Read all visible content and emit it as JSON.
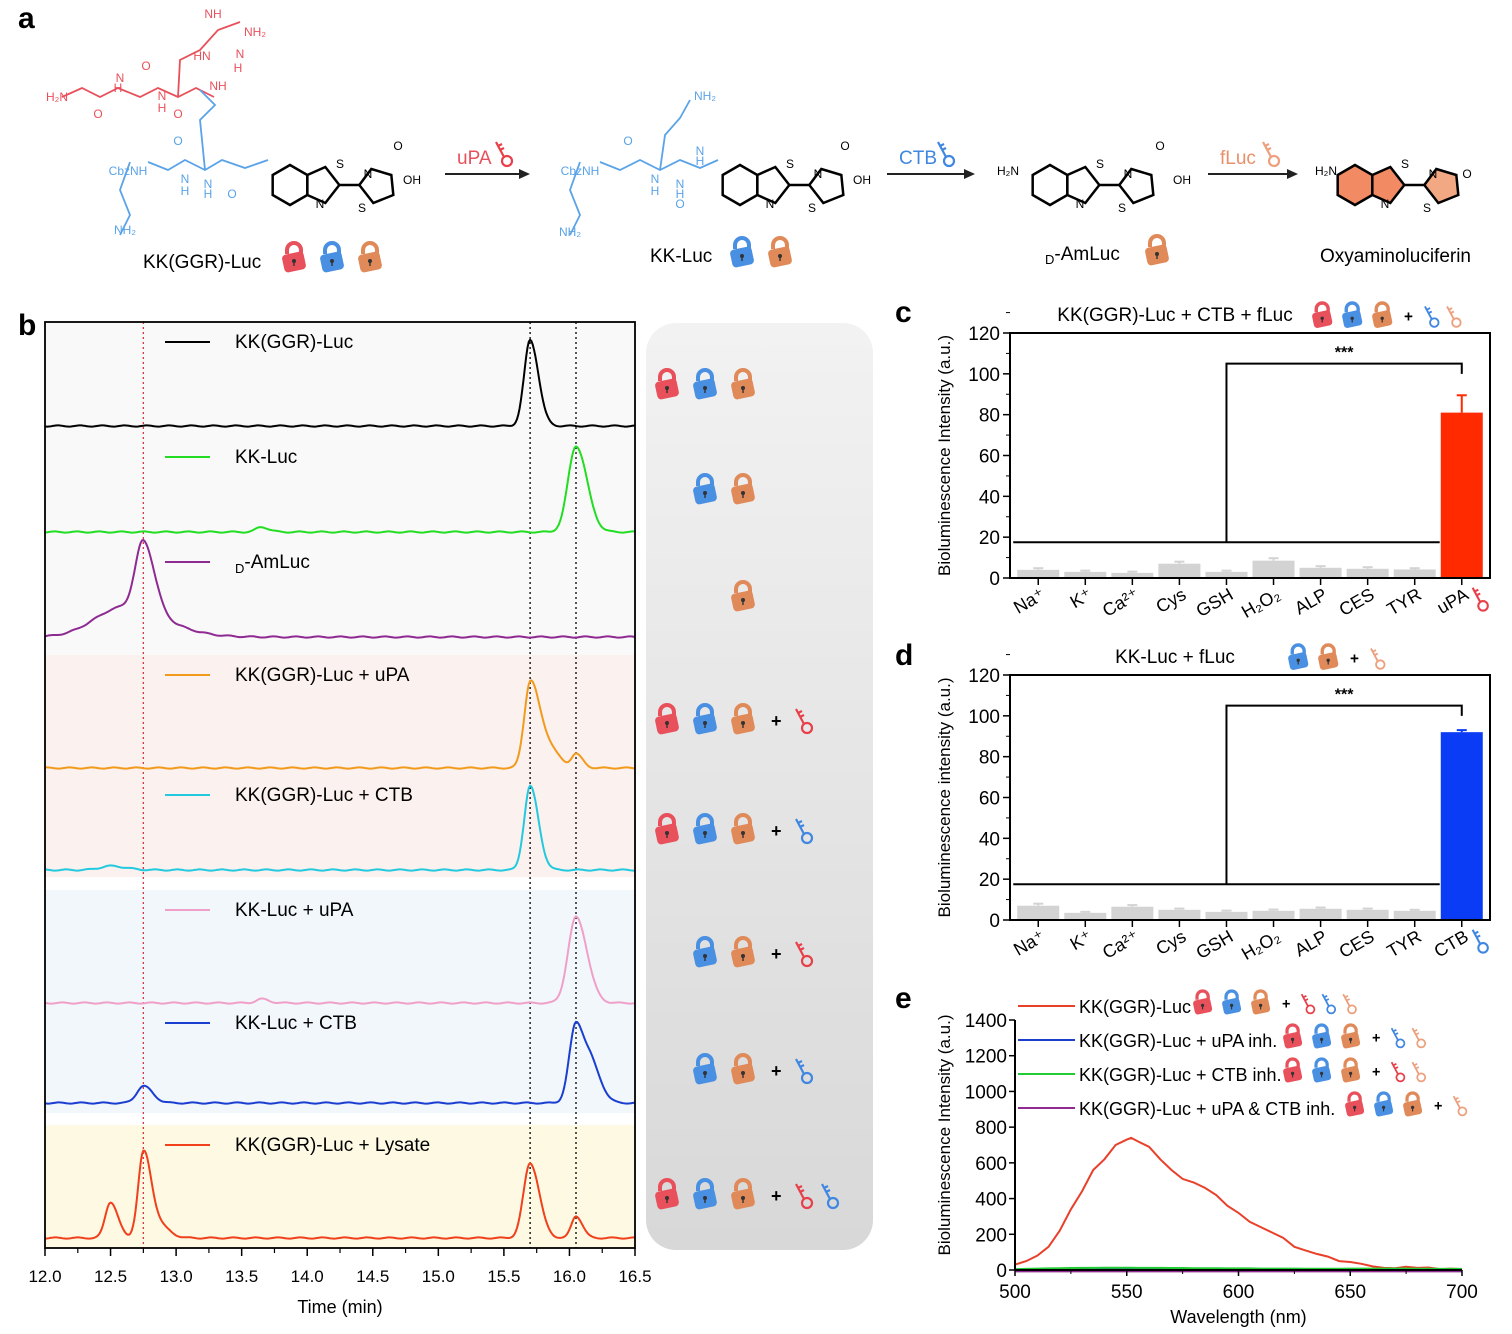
{
  "panel_labels": {
    "a": "a",
    "b": "b",
    "c": "c",
    "d": "d",
    "e": "e"
  },
  "panel_a": {
    "compounds": [
      {
        "name": "KK(GGR)-Luc",
        "locks": [
          "lock-red",
          "lock-blue",
          "lock-orange"
        ]
      },
      {
        "name": "KK-Luc",
        "locks": [
          "lock-blue",
          "lock-orange"
        ]
      },
      {
        "name_sub": "D",
        "name": "-AmLuc",
        "locks": [
          "lock-orange"
        ]
      },
      {
        "name": "Oxyaminoluciferin",
        "locks": []
      }
    ],
    "arrows": [
      {
        "label": "uPA",
        "color": "#e8505b",
        "key": "key-red"
      },
      {
        "label": "CTB",
        "color": "#3f87e0",
        "key": "key-blue"
      },
      {
        "label": "fLuc",
        "color": "#e9906a",
        "key": "key-orange"
      }
    ],
    "atom_labels": {
      "c1": [
        "NH",
        "NH₂",
        "N",
        "H",
        "HN",
        "H₂N",
        "N",
        "H",
        "O",
        "O",
        "O",
        "N",
        "H",
        "NH",
        "CbzNH",
        "N",
        "H",
        "O",
        "N",
        "H",
        "O",
        "NH₂",
        "S",
        "N",
        "N",
        "S",
        "O",
        "OH"
      ],
      "c2": [
        "NH₂",
        "CbzNH",
        "N",
        "H",
        "O",
        "N",
        "H",
        "O",
        "N",
        "H",
        "NH₂",
        "S",
        "N",
        "N",
        "S",
        "O",
        "OH"
      ],
      "c3": [
        "H₂N",
        "S",
        "N",
        "N",
        "S",
        "O",
        "OH"
      ],
      "c4": [
        "H₂N",
        "S",
        "N",
        "N",
        "S",
        "O"
      ]
    }
  },
  "colors": {
    "lock_red": "#e8505b",
    "lock_blue": "#4a90e2",
    "lock_orange": "#e08a5a",
    "key_red": "#e8404a",
    "key_blue": "#3f87e0",
    "key_orange": "#eca07e"
  },
  "chart_data": [
    {
      "panel": "b",
      "type": "line",
      "xlabel": "Time (min)",
      "xlim": [
        12.0,
        16.5
      ],
      "xticks": [
        "12.0",
        "12.5",
        "13.0",
        "13.5",
        "14.0",
        "14.5",
        "15.0",
        "15.5",
        "16.0",
        "16.5"
      ],
      "reference_lines": [
        {
          "x": 12.75,
          "color": "#d9363e",
          "style": "dotted"
        },
        {
          "x": 15.7,
          "color": "#000000",
          "style": "dotted"
        },
        {
          "x": 16.05,
          "color": "#000000",
          "style": "dotted"
        }
      ],
      "series": [
        {
          "name": "KK(GGR)-Luc",
          "color": "#000000",
          "peaks": [
            {
              "t": 15.7,
              "h": 86,
              "w": 0.045
            }
          ],
          "icons": [
            "lock-red",
            "lock-blue",
            "lock-orange"
          ]
        },
        {
          "name": "KK-Luc",
          "color": "#22dd22",
          "peaks": [
            {
              "t": 16.05,
              "h": 86,
              "w": 0.06
            },
            {
              "t": 13.65,
              "h": 5,
              "w": 0.04
            }
          ],
          "icons": [
            "lock-blue",
            "lock-orange"
          ]
        },
        {
          "name": "-AmLuc",
          "name_sub": "D",
          "color": "#8e2a92",
          "peaks": [
            {
              "t": 12.75,
              "h": 70,
              "w": 0.06
            },
            {
              "t": 12.6,
              "h": 30,
              "w": 0.22
            }
          ],
          "icons": [
            "lock-orange"
          ]
        },
        {
          "name": "KK(GGR)-Luc + uPA",
          "color": "#f29a1c",
          "peaks": [
            {
              "t": 15.7,
              "h": 84,
              "w": 0.045
            },
            {
              "t": 15.82,
              "h": 25,
              "w": 0.06
            },
            {
              "t": 16.05,
              "h": 14,
              "w": 0.035
            }
          ],
          "icons": [
            "lock-red",
            "lock-blue",
            "lock-orange",
            "+",
            "key-red"
          ]
        },
        {
          "name": "KK(GGR)-Luc + CTB",
          "color": "#22c9df",
          "peaks": [
            {
              "t": 15.7,
              "h": 84,
              "w": 0.045
            },
            {
              "t": 12.5,
              "h": 4,
              "w": 0.08
            }
          ],
          "icons": [
            "lock-red",
            "lock-blue",
            "lock-orange",
            "+",
            "key-blue"
          ]
        },
        {
          "name": "KK-Luc + uPA",
          "color": "#f0a0c8",
          "peaks": [
            {
              "t": 16.05,
              "h": 86,
              "w": 0.06
            },
            {
              "t": 13.65,
              "h": 4,
              "w": 0.04
            }
          ],
          "icons": [
            "lock-blue",
            "lock-orange",
            "+",
            "key-red"
          ]
        },
        {
          "name": "KK-Luc + CTB",
          "color": "#1a3fd0",
          "peaks": [
            {
              "t": 16.05,
              "h": 80,
              "w": 0.05
            },
            {
              "t": 16.18,
              "h": 30,
              "w": 0.05
            },
            {
              "t": 12.75,
              "h": 17,
              "w": 0.05
            }
          ],
          "icons": [
            "lock-blue",
            "lock-orange",
            "+",
            "key-blue"
          ]
        },
        {
          "name": "KK(GGR)-Luc + Lysate",
          "color": "#f0401c",
          "peaks": [
            {
              "t": 12.5,
              "h": 36,
              "w": 0.04
            },
            {
              "t": 12.75,
              "h": 83,
              "w": 0.04
            },
            {
              "t": 12.85,
              "h": 15,
              "w": 0.06
            },
            {
              "t": 15.7,
              "h": 75,
              "w": 0.05
            },
            {
              "t": 16.05,
              "h": 22,
              "w": 0.035
            }
          ],
          "icons": [
            "lock-red",
            "lock-blue",
            "lock-orange",
            "+",
            "key-red",
            "key-blue"
          ]
        }
      ]
    },
    {
      "panel": "c",
      "type": "bar",
      "title": "KK(GGR)-Luc + CTB + fLuc",
      "title_icons": [
        "lock-red",
        "lock-blue",
        "lock-orange",
        "+",
        "key-blue",
        "key-orange"
      ],
      "ylabel": "Bioluminescence Intensity (a.u.)",
      "ylim": [
        0,
        120
      ],
      "yticks": [
        "0",
        "20",
        "40",
        "60",
        "80",
        "100",
        "120"
      ],
      "categories": [
        "Na⁺",
        "K⁺",
        "Ca²⁺",
        "Cys",
        "GSH",
        "H₂O₂",
        "ALP",
        "CES",
        "TYR",
        "uPA"
      ],
      "last_icon": "key-red",
      "values": [
        4,
        3,
        2.5,
        7,
        3,
        8.5,
        5,
        4.5,
        4.2,
        81
      ],
      "errors": [
        0.8,
        0.6,
        0.6,
        1,
        0.6,
        1.2,
        0.8,
        0.8,
        0.6,
        8.5
      ],
      "bar_colors": [
        "#d3d3d3",
        "#d3d3d3",
        "#d3d3d3",
        "#d3d3d3",
        "#d3d3d3",
        "#d3d3d3",
        "#d3d3d3",
        "#d3d3d3",
        "#d3d3d3",
        "#ff2a00"
      ],
      "significance": "***"
    },
    {
      "panel": "d",
      "type": "bar",
      "title": "KK-Luc + fLuc",
      "title_icons": [
        "lock-blue",
        "lock-orange",
        "+",
        "key-orange"
      ],
      "ylabel": "Bioluminescence intensity (a.u.)",
      "ylim": [
        0,
        120
      ],
      "yticks": [
        "0",
        "20",
        "40",
        "60",
        "80",
        "100",
        "120"
      ],
      "categories": [
        "Na⁺",
        "K⁺",
        "Ca²⁺",
        "Cys",
        "GSH",
        "H₂O₂",
        "ALP",
        "CES",
        "TYR",
        "CTB"
      ],
      "last_icon": "key-blue",
      "values": [
        7,
        3.5,
        6.5,
        5,
        4,
        4.5,
        5.5,
        5,
        4.5,
        92
      ],
      "errors": [
        1,
        0.5,
        0.8,
        0.6,
        0.6,
        0.6,
        0.6,
        0.6,
        0.5,
        1
      ],
      "bar_colors": [
        "#d3d3d3",
        "#d3d3d3",
        "#d3d3d3",
        "#d3d3d3",
        "#d3d3d3",
        "#d3d3d3",
        "#d3d3d3",
        "#d3d3d3",
        "#d3d3d3",
        "#0a3cf5"
      ],
      "significance": "***"
    },
    {
      "panel": "e",
      "type": "line",
      "xlabel": "Wavelength (nm)",
      "ylabel": "Bioluminescence Intensity (a.u.)",
      "xlim": [
        500,
        700
      ],
      "ylim": [
        0,
        1400
      ],
      "xticks": [
        "500",
        "550",
        "600",
        "650",
        "700"
      ],
      "yticks": [
        "0",
        "200",
        "400",
        "600",
        "800",
        "1000",
        "1200",
        "1400"
      ],
      "x": [
        500,
        505,
        510,
        515,
        520,
        525,
        530,
        535,
        540,
        545,
        550,
        552,
        555,
        560,
        565,
        570,
        575,
        580,
        585,
        590,
        595,
        600,
        605,
        610,
        615,
        620,
        625,
        630,
        635,
        640,
        645,
        650,
        655,
        660,
        665,
        670,
        675,
        680,
        685,
        690,
        695,
        700
      ],
      "series": [
        {
          "name": "KK(GGR)-Luc",
          "color": "#e8402a",
          "icons": [
            "lock-red",
            "lock-blue",
            "lock-orange",
            "+",
            "key-red",
            "key-blue",
            "key-orange"
          ],
          "y": [
            30,
            50,
            80,
            130,
            220,
            340,
            440,
            560,
            620,
            700,
            730,
            740,
            720,
            690,
            620,
            560,
            510,
            490,
            460,
            420,
            360,
            320,
            270,
            240,
            210,
            180,
            130,
            110,
            90,
            75,
            50,
            45,
            35,
            20,
            12,
            10,
            18,
            12,
            14,
            5,
            8,
            5
          ]
        },
        {
          "name": "KK(GGR)-Luc + uPA inh.",
          "color": "#1d3fc8",
          "icons": [
            "lock-red",
            "lock-blue",
            "lock-orange",
            "+",
            "key-blue",
            "key-orange"
          ],
          "y": [
            2,
            3,
            4,
            5,
            6,
            7,
            8,
            9,
            8,
            8,
            9,
            8,
            8,
            7,
            7,
            6,
            6,
            5,
            5,
            5,
            4,
            5,
            4,
            4,
            4,
            3,
            3,
            3,
            3,
            3,
            3,
            3,
            3,
            3,
            3,
            3,
            3,
            3,
            3,
            3,
            3,
            3
          ]
        },
        {
          "name": "KK(GGR)-Luc + CTB inh.",
          "color": "#22cc33",
          "icons": [
            "lock-red",
            "lock-blue",
            "lock-orange",
            "+",
            "key-red",
            "key-orange"
          ],
          "y": [
            5,
            6,
            8,
            9,
            10,
            11,
            12,
            12,
            13,
            13,
            13,
            13,
            12,
            12,
            12,
            11,
            11,
            10,
            10,
            10,
            9,
            9,
            9,
            8,
            8,
            8,
            8,
            7,
            7,
            7,
            7,
            8,
            8,
            8,
            8,
            8,
            8,
            7,
            7,
            6,
            6,
            6
          ]
        },
        {
          "name": "KK(GGR)-Luc + uPA & CTB inh.",
          "color": "#8e2a92",
          "icons": [
            "lock-red",
            "lock-blue",
            "lock-orange",
            "+",
            "key-orange"
          ],
          "y": [
            -8,
            -8,
            -8,
            -8,
            -8,
            -8,
            -8,
            -8,
            -8,
            -8,
            -8,
            -8,
            -8,
            -8,
            -8,
            -8,
            -8,
            -8,
            -8,
            -8,
            -8,
            -8,
            -8,
            -8,
            -8,
            -8,
            -8,
            -8,
            -8,
            -8,
            -8,
            -8,
            -8,
            -8,
            -8,
            -8,
            -8,
            -8,
            -8,
            -8,
            -8,
            -8
          ]
        }
      ]
    }
  ]
}
